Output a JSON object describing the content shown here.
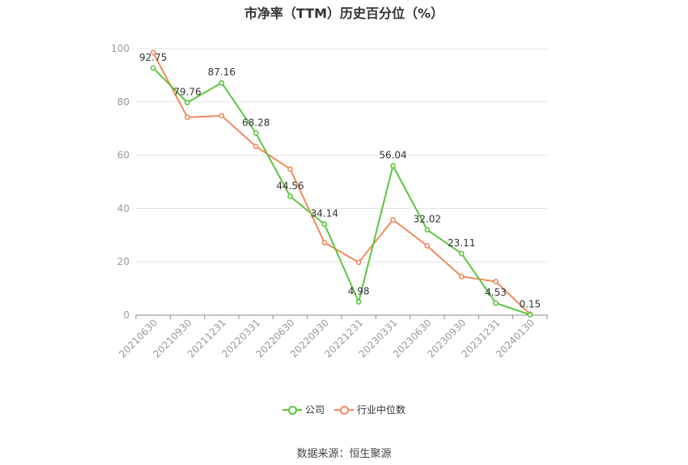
{
  "chart_data": {
    "type": "line",
    "title": "市净率（TTM）历史百分位（%）",
    "categories": [
      "20210630",
      "20210930",
      "20211231",
      "20220331",
      "20220630",
      "20220930",
      "20221231",
      "20230331",
      "20230630",
      "20230930",
      "20231231",
      "20240130"
    ],
    "series": [
      {
        "name": "公司",
        "color": "#5cc63e",
        "values": [
          92.75,
          79.76,
          87.16,
          68.28,
          44.56,
          34.14,
          4.98,
          56.04,
          32.02,
          23.11,
          4.53,
          0.15
        ],
        "labels": [
          "92.75",
          "79.76",
          "87.16",
          "68.28",
          "44.56",
          "34.14",
          "4.98",
          "56.04",
          "32.02",
          "23.11",
          "4.53",
          "0.15"
        ]
      },
      {
        "name": "行业中位数",
        "color": "#f08a5d",
        "values": [
          98.5,
          74.2,
          74.8,
          63.3,
          54.8,
          27.2,
          19.8,
          35.8,
          26.0,
          14.5,
          12.6,
          0.4
        ]
      }
    ],
    "ylim": [
      0,
      100
    ],
    "yticks": [
      0,
      20,
      40,
      60,
      80,
      100
    ],
    "grid": true,
    "legend": "bottom-center"
  },
  "source": "数据来源：恒生聚源"
}
